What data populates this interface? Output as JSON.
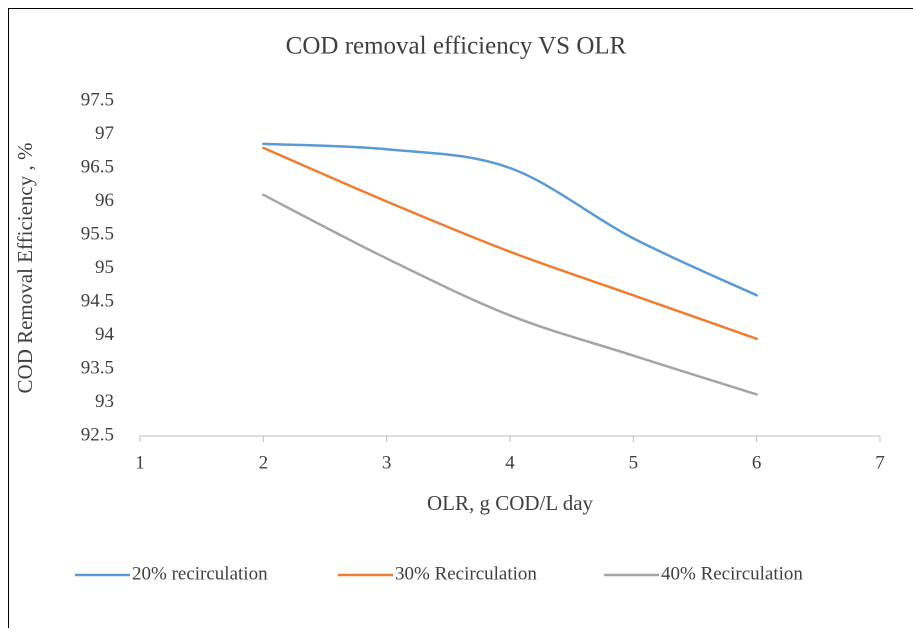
{
  "chart_data": {
    "type": "line",
    "title": "COD removal efficiency VS OLR",
    "x_label": "OLR, g COD/L day",
    "y_label": "COD Removal Efficiency , %",
    "x": [
      2,
      3,
      4,
      5,
      6
    ],
    "series": [
      {
        "name": "20% recirculation",
        "color": "#5b9bd5",
        "values": [
          96.86,
          96.78,
          96.5,
          95.45,
          94.6
        ]
      },
      {
        "name": "30% Recirculation",
        "color": "#ed7d31",
        "values": [
          96.8,
          96.0,
          95.25,
          94.6,
          93.95
        ]
      },
      {
        "name": "40% Recirculation",
        "color": "#a5a5a5",
        "values": [
          96.1,
          95.15,
          94.3,
          93.7,
          93.12
        ]
      }
    ],
    "xlim": [
      1,
      7
    ],
    "xticks": [
      1,
      2,
      3,
      4,
      5,
      6,
      7
    ],
    "ylim": [
      92.5,
      97.5
    ],
    "yticks": [
      92.5,
      93,
      93.5,
      94,
      94.5,
      95,
      95.5,
      96,
      96.5,
      97,
      97.5
    ],
    "grid": false,
    "smooth": true,
    "legend": "bottom"
  }
}
